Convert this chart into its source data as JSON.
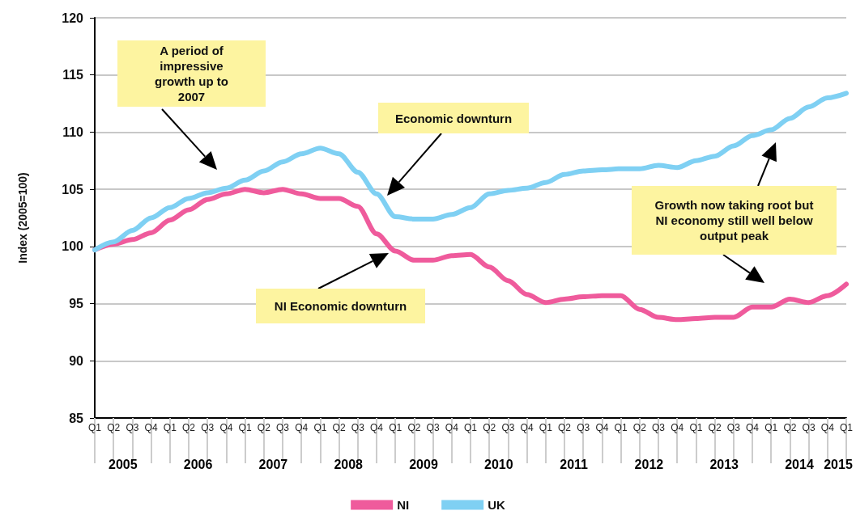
{
  "chart_data": {
    "type": "line",
    "ylabel": "Index (2005=100)",
    "categories": [
      "Q1",
      "Q2",
      "Q3",
      "Q4",
      "Q1",
      "Q2",
      "Q3",
      "Q4",
      "Q1",
      "Q2",
      "Q3",
      "Q4",
      "Q1",
      "Q2",
      "Q3",
      "Q4",
      "Q1",
      "Q2",
      "Q3",
      "Q4",
      "Q1",
      "Q2",
      "Q3",
      "Q4",
      "Q1",
      "Q2",
      "Q3",
      "Q4",
      "Q1",
      "Q2",
      "Q3",
      "Q4",
      "Q1",
      "Q2",
      "Q3",
      "Q4",
      "Q1",
      "Q2",
      "Q3",
      "Q4",
      "Q1"
    ],
    "series": [
      {
        "name": "NI",
        "color": "#ef5b9c",
        "values": [
          99.7,
          100.2,
          100.6,
          101.2,
          102.3,
          103.2,
          104.1,
          104.6,
          105.0,
          104.7,
          105.0,
          104.6,
          104.2,
          104.2,
          103.5,
          101.1,
          99.6,
          98.8,
          98.8,
          99.2,
          99.3,
          98.2,
          97.0,
          95.8,
          95.1,
          95.4,
          95.6,
          95.7,
          95.7,
          94.5,
          93.8,
          93.6,
          93.7,
          93.8,
          93.8,
          94.7,
          94.7,
          95.4,
          95.1,
          95.7,
          96.7
        ]
      },
      {
        "name": "UK",
        "color": "#7fd0f3",
        "values": [
          99.7,
          100.4,
          101.4,
          102.5,
          103.4,
          104.2,
          104.7,
          105.1,
          105.8,
          106.6,
          107.4,
          108.1,
          108.6,
          108.1,
          106.5,
          104.6,
          102.6,
          102.4,
          102.4,
          102.8,
          103.4,
          104.6,
          104.9,
          105.1,
          105.6,
          106.3,
          106.6,
          106.7,
          106.8,
          106.8,
          107.1,
          106.9,
          107.5,
          107.9,
          108.8,
          109.7,
          110.2,
          111.2,
          112.2,
          113.0,
          113.4
        ]
      }
    ],
    "ylim": [
      85,
      120
    ],
    "yticks": [
      85,
      90,
      95,
      100,
      105,
      110,
      115,
      120
    ],
    "grid": "y",
    "legend": "bottom",
    "marker": "none",
    "line_style": "solid",
    "annotations": [
      "A period of impressive growth up to 2007",
      "Economic downturn",
      "NI Economic downturn",
      "Growth now taking root but NI economy still well below output peak",
      "2005",
      "2006",
      "2007",
      "2008",
      "2009",
      "2010",
      "2011",
      "2012",
      "2013",
      "2014",
      "2015"
    ]
  }
}
